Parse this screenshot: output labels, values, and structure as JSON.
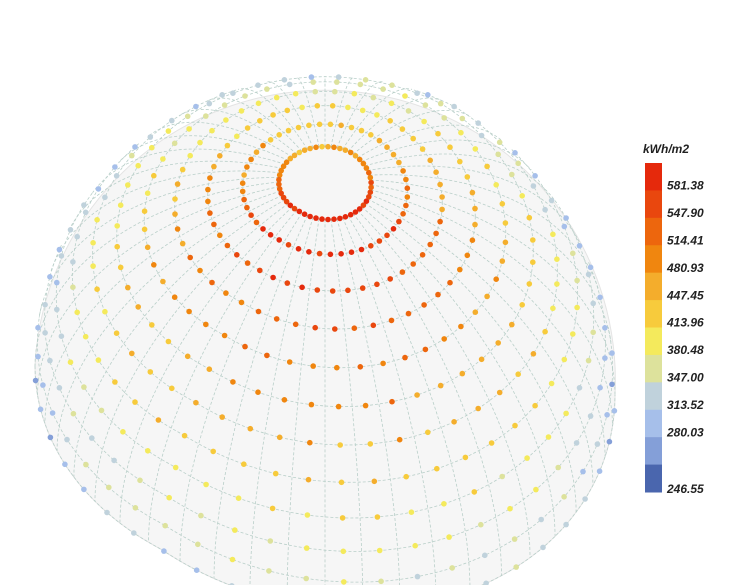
{
  "legend": {
    "title": "kWh/m2",
    "labels": [
      "581.38",
      "547.90",
      "514.41",
      "480.93",
      "447.45",
      "413.96",
      "380.48",
      "347.00",
      "313.52",
      "280.03",
      "246.55"
    ],
    "colors": [
      "#e5290c",
      "#e9470e",
      "#ed660d",
      "#f0860f",
      "#f4ad2c",
      "#f7cb3c",
      "#f4ea5c",
      "#dde29c",
      "#c0d2dc",
      "#a6bfea",
      "#849fd8",
      "#4a66ae"
    ]
  }
}
